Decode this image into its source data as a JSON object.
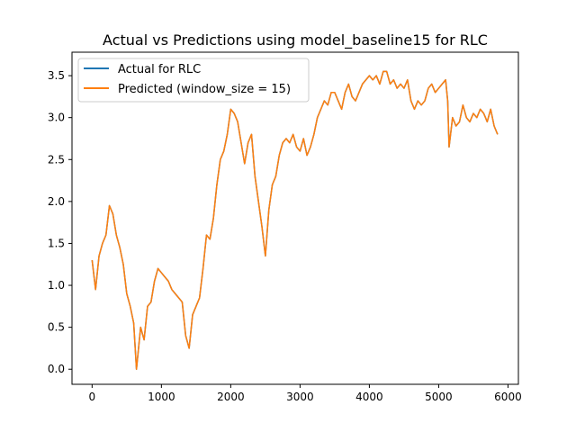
{
  "chart_data": {
    "type": "line",
    "title": "Actual vs Predictions using model_baseline15 for RLC",
    "xlabel": "",
    "ylabel": "",
    "xlim": [
      -290,
      6150
    ],
    "ylim": [
      -0.18,
      3.78
    ],
    "x_ticks": [
      0,
      1000,
      2000,
      3000,
      4000,
      5000,
      6000
    ],
    "x_tick_labels": [
      "0",
      "1000",
      "2000",
      "3000",
      "4000",
      "5000",
      "6000"
    ],
    "y_ticks": [
      0.0,
      0.5,
      1.0,
      1.5,
      2.0,
      2.5,
      3.0,
      3.5
    ],
    "y_tick_labels": [
      "0.0",
      "0.5",
      "1.0",
      "1.5",
      "2.0",
      "2.5",
      "3.0",
      "3.5"
    ],
    "grid": false,
    "legend_position": "upper-left",
    "series": [
      {
        "name": "Actual for RLC",
        "color": "#1f77b4",
        "x": [
          0,
          50,
          100,
          150,
          200,
          250,
          300,
          350,
          400,
          450,
          500,
          550,
          600,
          640,
          700,
          750,
          800,
          850,
          900,
          950,
          1000,
          1050,
          1100,
          1150,
          1200,
          1250,
          1300,
          1350,
          1400,
          1450,
          1500,
          1550,
          1600,
          1650,
          1700,
          1750,
          1800,
          1850,
          1900,
          1950,
          2000,
          2050,
          2100,
          2150,
          2200,
          2250,
          2300,
          2350,
          2400,
          2450,
          2500,
          2550,
          2600,
          2650,
          2700,
          2750,
          2800,
          2850,
          2900,
          2950,
          3000,
          3050,
          3100,
          3150,
          3200,
          3250,
          3300,
          3350,
          3400,
          3450,
          3500,
          3550,
          3600,
          3650,
          3700,
          3750,
          3800,
          3850,
          3900,
          3950,
          4000,
          4050,
          4100,
          4150,
          4200,
          4250,
          4300,
          4350,
          4400,
          4450,
          4500,
          4550,
          4600,
          4650,
          4700,
          4750,
          4800,
          4850,
          4900,
          4950,
          5000,
          5050,
          5100,
          5130,
          5150,
          5200,
          5250,
          5300,
          5350,
          5400,
          5450,
          5500,
          5550,
          5600,
          5650,
          5700,
          5750,
          5800,
          5850
        ],
        "values": [
          1.3,
          0.95,
          1.35,
          1.5,
          1.6,
          1.95,
          1.85,
          1.6,
          1.45,
          1.25,
          0.9,
          0.75,
          0.55,
          0.0,
          0.5,
          0.35,
          0.75,
          0.8,
          1.05,
          1.2,
          1.15,
          1.1,
          1.05,
          0.95,
          0.9,
          0.85,
          0.8,
          0.4,
          0.25,
          0.65,
          0.75,
          0.85,
          1.2,
          1.6,
          1.55,
          1.8,
          2.2,
          2.5,
          2.6,
          2.8,
          3.1,
          3.05,
          2.95,
          2.7,
          2.45,
          2.7,
          2.8,
          2.3,
          2.0,
          1.7,
          1.35,
          1.9,
          2.2,
          2.3,
          2.55,
          2.7,
          2.75,
          2.7,
          2.8,
          2.65,
          2.6,
          2.75,
          2.55,
          2.65,
          2.8,
          3.0,
          3.1,
          3.2,
          3.15,
          3.3,
          3.3,
          3.2,
          3.1,
          3.3,
          3.4,
          3.25,
          3.2,
          3.3,
          3.4,
          3.45,
          3.5,
          3.45,
          3.5,
          3.4,
          3.55,
          3.55,
          3.4,
          3.45,
          3.35,
          3.4,
          3.35,
          3.45,
          3.2,
          3.1,
          3.2,
          3.15,
          3.2,
          3.35,
          3.4,
          3.3,
          3.35,
          3.4,
          3.45,
          3.2,
          2.65,
          3.0,
          2.9,
          2.95,
          3.15,
          3.0,
          2.95,
          3.05,
          3.0,
          3.1,
          3.05,
          2.95,
          3.1,
          2.9,
          2.8
        ]
      },
      {
        "name": "Predicted (window_size = 15)",
        "color": "#ff7f0e",
        "x": [
          0,
          50,
          100,
          150,
          200,
          250,
          300,
          350,
          400,
          450,
          500,
          550,
          600,
          640,
          700,
          750,
          800,
          850,
          900,
          950,
          1000,
          1050,
          1100,
          1150,
          1200,
          1250,
          1300,
          1350,
          1400,
          1450,
          1500,
          1550,
          1600,
          1650,
          1700,
          1750,
          1800,
          1850,
          1900,
          1950,
          2000,
          2050,
          2100,
          2150,
          2200,
          2250,
          2300,
          2350,
          2400,
          2450,
          2500,
          2550,
          2600,
          2650,
          2700,
          2750,
          2800,
          2850,
          2900,
          2950,
          3000,
          3050,
          3100,
          3150,
          3200,
          3250,
          3300,
          3350,
          3400,
          3450,
          3500,
          3550,
          3600,
          3650,
          3700,
          3750,
          3800,
          3850,
          3900,
          3950,
          4000,
          4050,
          4100,
          4150,
          4200,
          4250,
          4300,
          4350,
          4400,
          4450,
          4500,
          4550,
          4600,
          4650,
          4700,
          4750,
          4800,
          4850,
          4900,
          4950,
          5000,
          5050,
          5100,
          5130,
          5150,
          5200,
          5250,
          5300,
          5350,
          5400,
          5450,
          5500,
          5550,
          5600,
          5650,
          5700,
          5750,
          5800,
          5850
        ],
        "values": [
          1.3,
          0.95,
          1.35,
          1.5,
          1.6,
          1.95,
          1.85,
          1.6,
          1.45,
          1.25,
          0.9,
          0.75,
          0.55,
          0.0,
          0.5,
          0.35,
          0.75,
          0.8,
          1.05,
          1.2,
          1.15,
          1.1,
          1.05,
          0.95,
          0.9,
          0.85,
          0.8,
          0.4,
          0.25,
          0.65,
          0.75,
          0.85,
          1.2,
          1.6,
          1.55,
          1.8,
          2.2,
          2.5,
          2.6,
          2.8,
          3.1,
          3.05,
          2.95,
          2.7,
          2.45,
          2.7,
          2.8,
          2.3,
          2.0,
          1.7,
          1.35,
          1.9,
          2.2,
          2.3,
          2.55,
          2.7,
          2.75,
          2.7,
          2.8,
          2.65,
          2.6,
          2.75,
          2.55,
          2.65,
          2.8,
          3.0,
          3.1,
          3.2,
          3.15,
          3.3,
          3.3,
          3.2,
          3.1,
          3.3,
          3.4,
          3.25,
          3.2,
          3.3,
          3.4,
          3.45,
          3.5,
          3.45,
          3.5,
          3.4,
          3.55,
          3.55,
          3.4,
          3.45,
          3.35,
          3.4,
          3.35,
          3.45,
          3.2,
          3.1,
          3.2,
          3.15,
          3.2,
          3.35,
          3.4,
          3.3,
          3.35,
          3.4,
          3.45,
          3.2,
          2.65,
          3.0,
          2.9,
          2.95,
          3.15,
          3.0,
          2.95,
          3.05,
          3.0,
          3.1,
          3.05,
          2.95,
          3.1,
          2.9,
          2.8
        ]
      }
    ]
  }
}
